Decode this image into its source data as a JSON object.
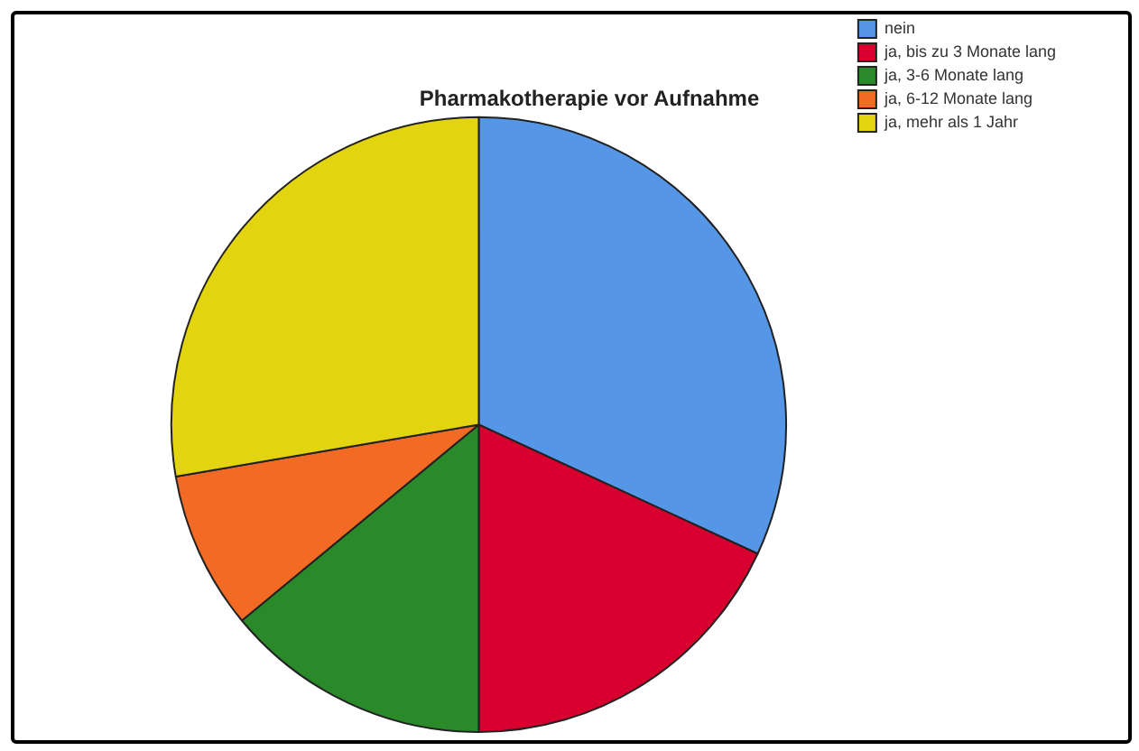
{
  "chart_data": {
    "type": "pie",
    "title": "Pharmakotherapie vor Aufnahme",
    "categories": [
      "nein",
      "ja, bis zu 3 Monate lang",
      "ja, 3-6 Monate lang",
      "ja, 6-12 Monate lang",
      "ja, mehr als 1 Jahr"
    ],
    "values": [
      31.9,
      18.1,
      14.0,
      8.3,
      27.7
    ],
    "colors": [
      "#5596e6",
      "#d8002f",
      "#2a8a2a",
      "#f26a23",
      "#e2d40e"
    ],
    "legend": "top right"
  }
}
